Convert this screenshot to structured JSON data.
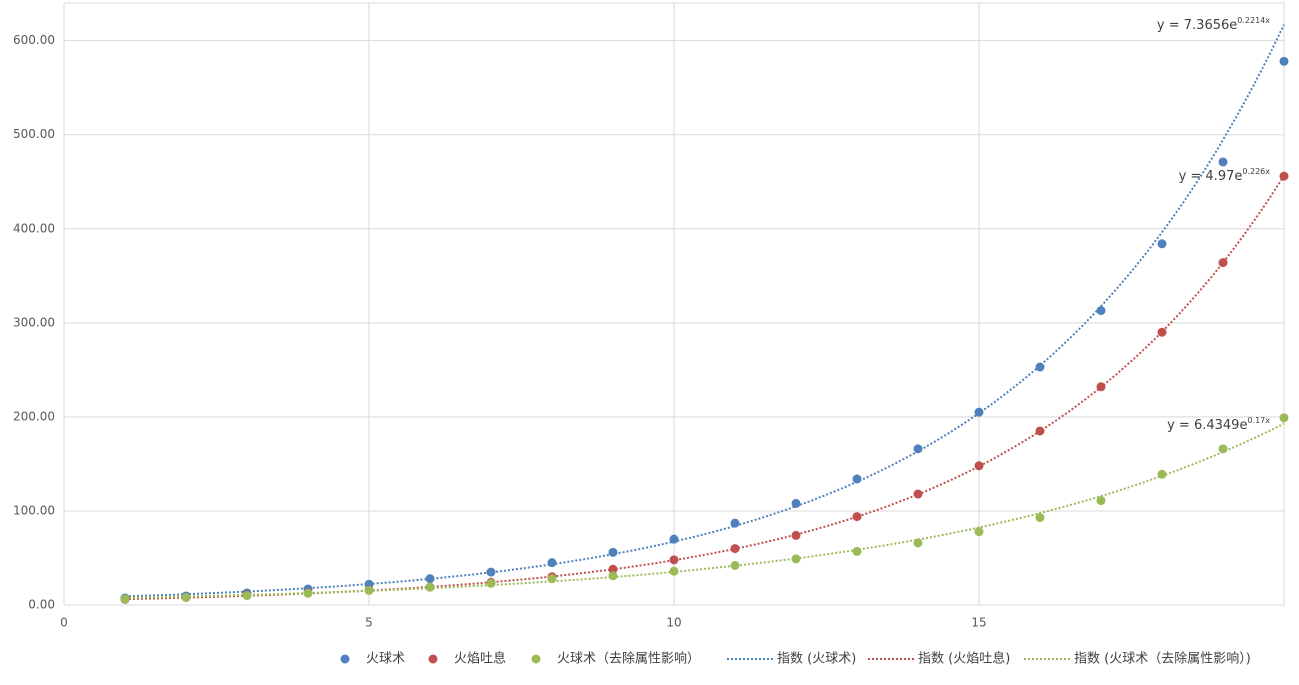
{
  "chart_data": {
    "type": "scatter",
    "x": [
      1,
      2,
      3,
      4,
      5,
      6,
      7,
      8,
      9,
      10,
      11,
      12,
      13,
      14,
      15,
      16,
      17,
      18,
      19,
      20
    ],
    "series": [
      {
        "name": "火球术",
        "color": "#4f81bd",
        "values": [
          7.4,
          9.6,
          12.8,
          17,
          22,
          28,
          35,
          45,
          56,
          70,
          87,
          108,
          134,
          166,
          205,
          253,
          313,
          384,
          471,
          578
        ]
      },
      {
        "name": "火焰吐息",
        "color": "#c0504d",
        "values": [
          6,
          8,
          10.6,
          13,
          16,
          19,
          24,
          30,
          38,
          48,
          60,
          74,
          94,
          118,
          148,
          185,
          232,
          290,
          364,
          456
        ]
      },
      {
        "name": "火球术（去除属性影响）",
        "color": "#9bbb59",
        "values": [
          6.4,
          8,
          10,
          12.5,
          15.5,
          19,
          23,
          28,
          31,
          36,
          42,
          49,
          57,
          66,
          78,
          93,
          111,
          139,
          166,
          199
        ]
      }
    ],
    "trendlines": [
      {
        "name": "指数 (火球术)",
        "color": "#4f81bd",
        "a": 7.3656,
        "b": 0.2214,
        "equation": "y = 7.3656e",
        "exponent": "0.2214x"
      },
      {
        "name": "指数 (火焰吐息)",
        "color": "#c0504d",
        "a": 4.97,
        "b": 0.226,
        "equation": "y = 4.97e",
        "exponent": "0.226x"
      },
      {
        "name": "指数 (火球术（去除属性影响）)",
        "color": "#9bbb59",
        "a": 6.4349,
        "b": 0.17,
        "equation": "y = 6.4349e",
        "exponent": "0.17x"
      }
    ],
    "xlim": [
      0,
      20
    ],
    "xticks": [
      0,
      5,
      10,
      15
    ],
    "ylim": [
      0,
      640
    ],
    "yticks": [
      {
        "value": 0,
        "label": "0.00"
      },
      {
        "value": 100,
        "label": "100.00"
      },
      {
        "value": 200,
        "label": "200.00"
      },
      {
        "value": 300,
        "label": "300.00"
      },
      {
        "value": 400,
        "label": "400.00"
      },
      {
        "value": 500,
        "label": "500.00"
      },
      {
        "value": 600,
        "label": "600.00"
      }
    ],
    "grid": true
  }
}
